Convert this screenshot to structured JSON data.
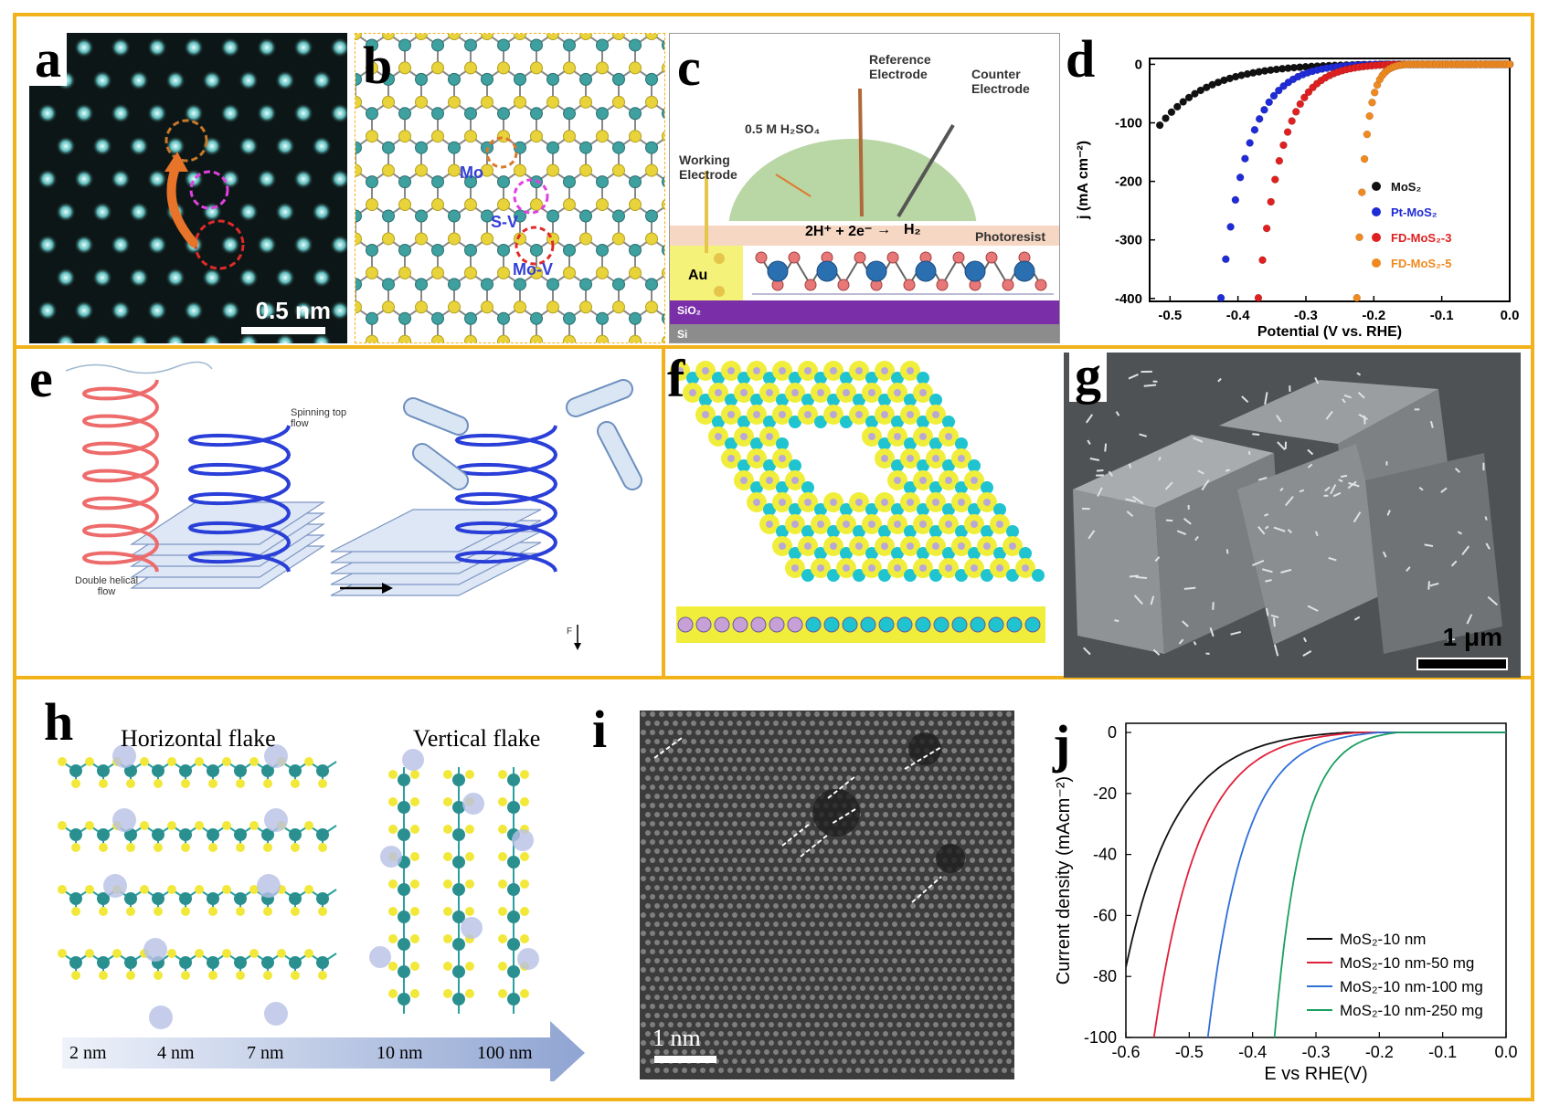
{
  "panels": {
    "a": {
      "label": "a",
      "scalebar": "0.5 nm"
    },
    "b": {
      "label": "b",
      "mo": "Mo",
      "sv": "S-V",
      "mov": "Mo-V"
    },
    "c": {
      "label": "c",
      "reference": "Reference\nElectrode",
      "counter": "Counter\nElectrode",
      "electrolyte": "0.5 M H₂SO₄",
      "working": "Working\nElectrode",
      "reaction_left": "2H⁺ + 2e⁻",
      "reaction_right": "H₂",
      "photoresist": "Photoresist",
      "au": "Au",
      "sio2": "SiO₂",
      "si": "Si"
    },
    "e": {
      "label": "e",
      "spinning": "Spinning top\nflow",
      "double": "Double helical\nflow",
      "force": "F"
    },
    "f": {
      "label": "f"
    },
    "g": {
      "label": "g",
      "scalebar": "1 μm"
    },
    "h": {
      "label": "h",
      "horizontal": "Horizontal flake",
      "vertical": "Vertical flake",
      "scale": [
        "2 nm",
        "4 nm",
        "7 nm",
        "10 nm",
        "100 nm"
      ]
    },
    "i": {
      "label": "i",
      "scalebar": "1 nm"
    },
    "d": {
      "label": "d"
    },
    "j": {
      "label": "j"
    }
  },
  "chart_data": [
    {
      "type": "scatter",
      "panel": "d",
      "xlabel": "Potential (V vs. RHE)",
      "ylabel": "j (mA cm⁻²)",
      "xlim": [
        -0.53,
        0.0
      ],
      "ylim": [
        -405,
        10
      ],
      "xticks": [
        "-0.5",
        "-0.4",
        "-0.3",
        "-0.2",
        "-0.1",
        "0.0"
      ],
      "yticks": [
        "0",
        "-100",
        "-200",
        "-300",
        "-400"
      ],
      "legend_position": "right",
      "series": [
        {
          "name": "MoS₂",
          "color": "#111111",
          "onset": -0.18,
          "end_x": -0.515,
          "end_y": -105
        },
        {
          "name": "Pt-MoS₂",
          "color": "#1f2bd6",
          "onset": -0.19,
          "end_x": -0.425,
          "end_y": -400
        },
        {
          "name": "FD-MoS₂-3",
          "color": "#e02020",
          "onset": -0.16,
          "end_x": -0.37,
          "end_y": -400
        },
        {
          "name": "FD-MoS₂-5",
          "color": "#f08a20",
          "onset": -0.15,
          "end_x": -0.225,
          "end_y": -400
        }
      ]
    },
    {
      "type": "line",
      "panel": "j",
      "xlabel": "E vs RHE(V)",
      "ylabel": "Current density (mAcm⁻²)",
      "xlim": [
        -0.6,
        0.0
      ],
      "ylim": [
        -100,
        3
      ],
      "xticks": [
        "-0.6",
        "-0.5",
        "-0.4",
        "-0.3",
        "-0.2",
        "-0.1",
        "0.0"
      ],
      "yticks": [
        "0",
        "-20",
        "-40",
        "-60",
        "-80",
        "-100"
      ],
      "legend_position": "bottom-right",
      "series": [
        {
          "name": "MoS₂-10 nm",
          "color": "#111111",
          "x100": -0.62,
          "onset": -0.25
        },
        {
          "name": "MoS₂-10 nm-50 mg",
          "color": "#e0203a",
          "x100": -0.555,
          "onset": -0.23
        },
        {
          "name": "MoS₂-10 nm-100 mg",
          "color": "#2f6fd8",
          "x100": -0.47,
          "onset": -0.2
        },
        {
          "name": "MoS₂-10 nm-250 mg",
          "color": "#1aa060",
          "x100": -0.365,
          "onset": -0.17
        }
      ]
    }
  ]
}
